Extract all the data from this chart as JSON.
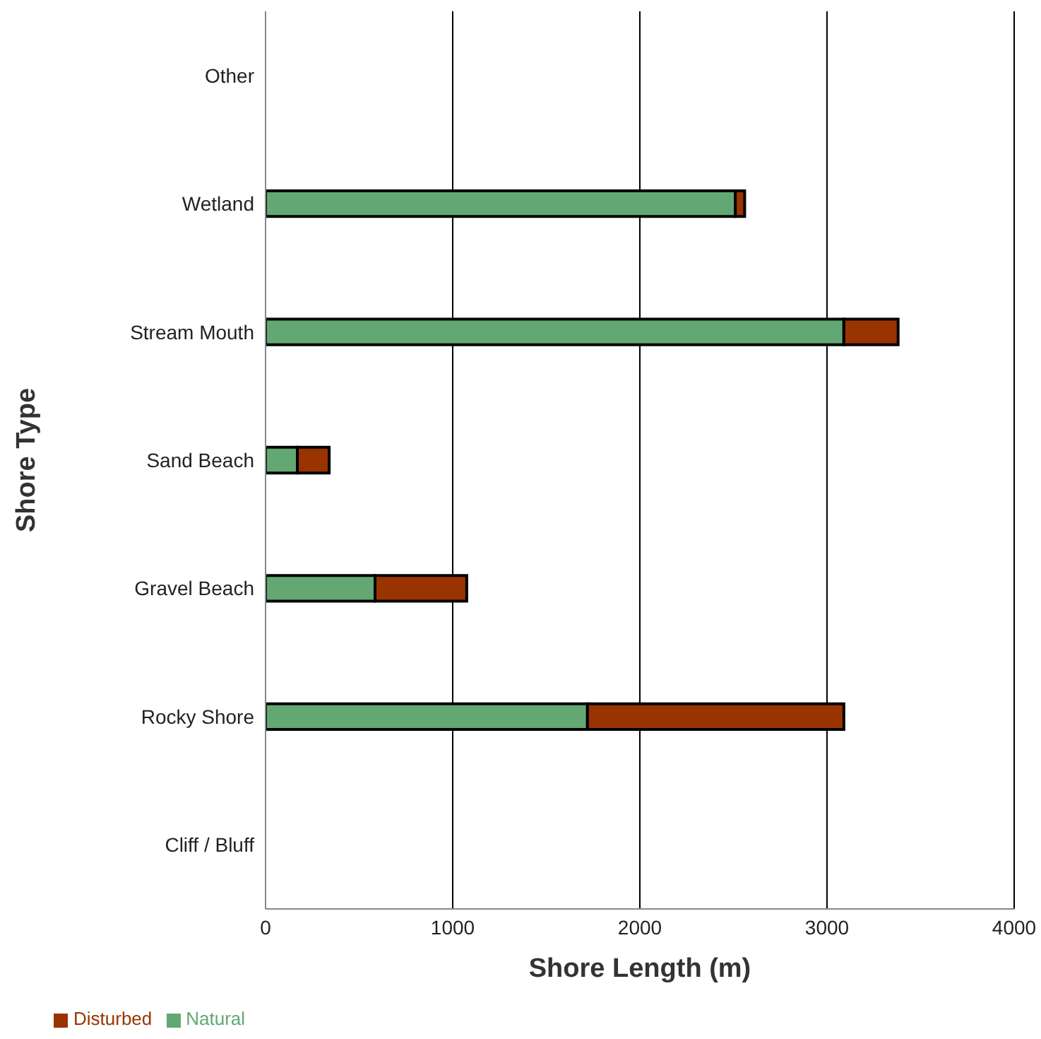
{
  "chart_data": {
    "type": "bar",
    "orientation": "horizontal",
    "stacked": true,
    "xlabel": "Shore Length (m)",
    "ylabel": "Shore Type",
    "categories": [
      "Other",
      "Wetland",
      "Stream Mouth",
      "Sand Beach",
      "Gravel Beach",
      "Rocky Shore",
      "Cliff / Bluff"
    ],
    "series": [
      {
        "name": "Natural",
        "color": "#63a873",
        "values": [
          0,
          2510,
          3090,
          170,
          585,
          1720,
          0
        ]
      },
      {
        "name": "Disturbed",
        "color": "#993300",
        "values": [
          0,
          50,
          290,
          170,
          490,
          1370,
          0
        ]
      }
    ],
    "xlim": [
      0,
      4000
    ],
    "xticks": [
      0,
      1000,
      2000,
      3000,
      4000
    ],
    "grid": "x",
    "legend": "bottom left"
  }
}
